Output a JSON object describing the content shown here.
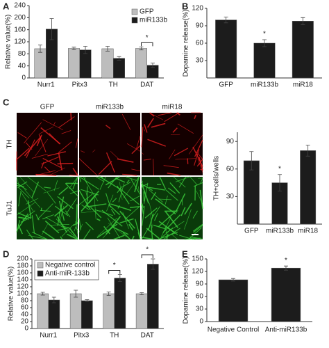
{
  "chart_data": [
    {
      "type": "bar",
      "panel": "A",
      "y_label": "Relative value(%)",
      "categories": [
        "Nurr1",
        "Pitx3",
        "TH",
        "DAT"
      ],
      "series": [
        {
          "name": "GFP",
          "color": "#bdbdbd",
          "values": [
            97,
            98,
            97,
            98
          ],
          "errors": [
            12,
            4,
            8,
            5
          ]
        },
        {
          "name": "miR133b",
          "color": "#1c1c1c",
          "values": [
            162,
            93,
            65,
            42
          ],
          "errors": [
            35,
            12,
            6,
            7
          ]
        }
      ],
      "ylim": [
        0,
        240
      ],
      "yticks": [
        0,
        40,
        80,
        120,
        160,
        200,
        240
      ],
      "legend": "top-right",
      "annotations": [
        {
          "text": "*",
          "category": "DAT"
        }
      ]
    },
    {
      "type": "bar",
      "panel": "B",
      "y_label": "Dopamine release(%)",
      "categories": [
        "GFP",
        "miR133b",
        "miR18"
      ],
      "values": [
        100,
        60,
        98
      ],
      "errors": [
        5,
        6,
        6
      ],
      "color": "#1c1c1c",
      "ylim": [
        0,
        120
      ],
      "yticks": [
        30,
        60,
        90,
        120
      ],
      "annotations": [
        {
          "text": "*",
          "category": "miR133b"
        }
      ]
    },
    {
      "type": "bar",
      "y_label": "TH+cells/wells",
      "categories": [
        "GFP",
        "miR133b",
        "miR18"
      ],
      "values": [
        69,
        45,
        80
      ],
      "errors": [
        10,
        9,
        6
      ],
      "color": "#1c1c1c",
      "ylim": [
        0,
        100
      ],
      "yticks": [
        30,
        60,
        90
      ],
      "annotations": [
        {
          "text": "*",
          "category": "miR133b"
        }
      ]
    },
    {
      "type": "bar",
      "panel": "D",
      "y_label": "Relative value(%)",
      "categories": [
        "Nurr1",
        "Pitx3",
        "TH",
        "DAT"
      ],
      "series": [
        {
          "name": "Negative control",
          "color": "#bdbdbd",
          "values": [
            100,
            100,
            100,
            100
          ],
          "errors": [
            4,
            10,
            5,
            3
          ]
        },
        {
          "name": "Anti-miR-133b",
          "color": "#1c1c1c",
          "values": [
            82,
            80,
            145,
            185
          ],
          "errors": [
            8,
            3,
            10,
            15
          ]
        }
      ],
      "ylim": [
        0,
        200
      ],
      "yticks": [
        0,
        20,
        40,
        60,
        80,
        100,
        120,
        140,
        160,
        180,
        200
      ],
      "legend": "top-left",
      "annotations": [
        {
          "text": "*",
          "category": "TH"
        },
        {
          "text": "*",
          "category": "DAT"
        }
      ]
    },
    {
      "type": "bar",
      "panel": "E",
      "y_label": "Dopamine release(%)",
      "categories": [
        "Negative Control",
        "Anti-miR133b"
      ],
      "values": [
        100,
        128
      ],
      "errors": [
        3,
        5
      ],
      "color": "#1c1c1c",
      "ylim": [
        0,
        150
      ],
      "yticks": [
        0,
        30,
        60,
        90,
        120,
        150
      ],
      "annotations": [
        {
          "text": "*",
          "category": "Anti-miR133b"
        }
      ]
    }
  ],
  "images": {
    "panel": "C",
    "columns": [
      "GFP",
      "miR133b",
      "miR18"
    ],
    "rows": [
      "TH",
      "TuJ1"
    ]
  }
}
